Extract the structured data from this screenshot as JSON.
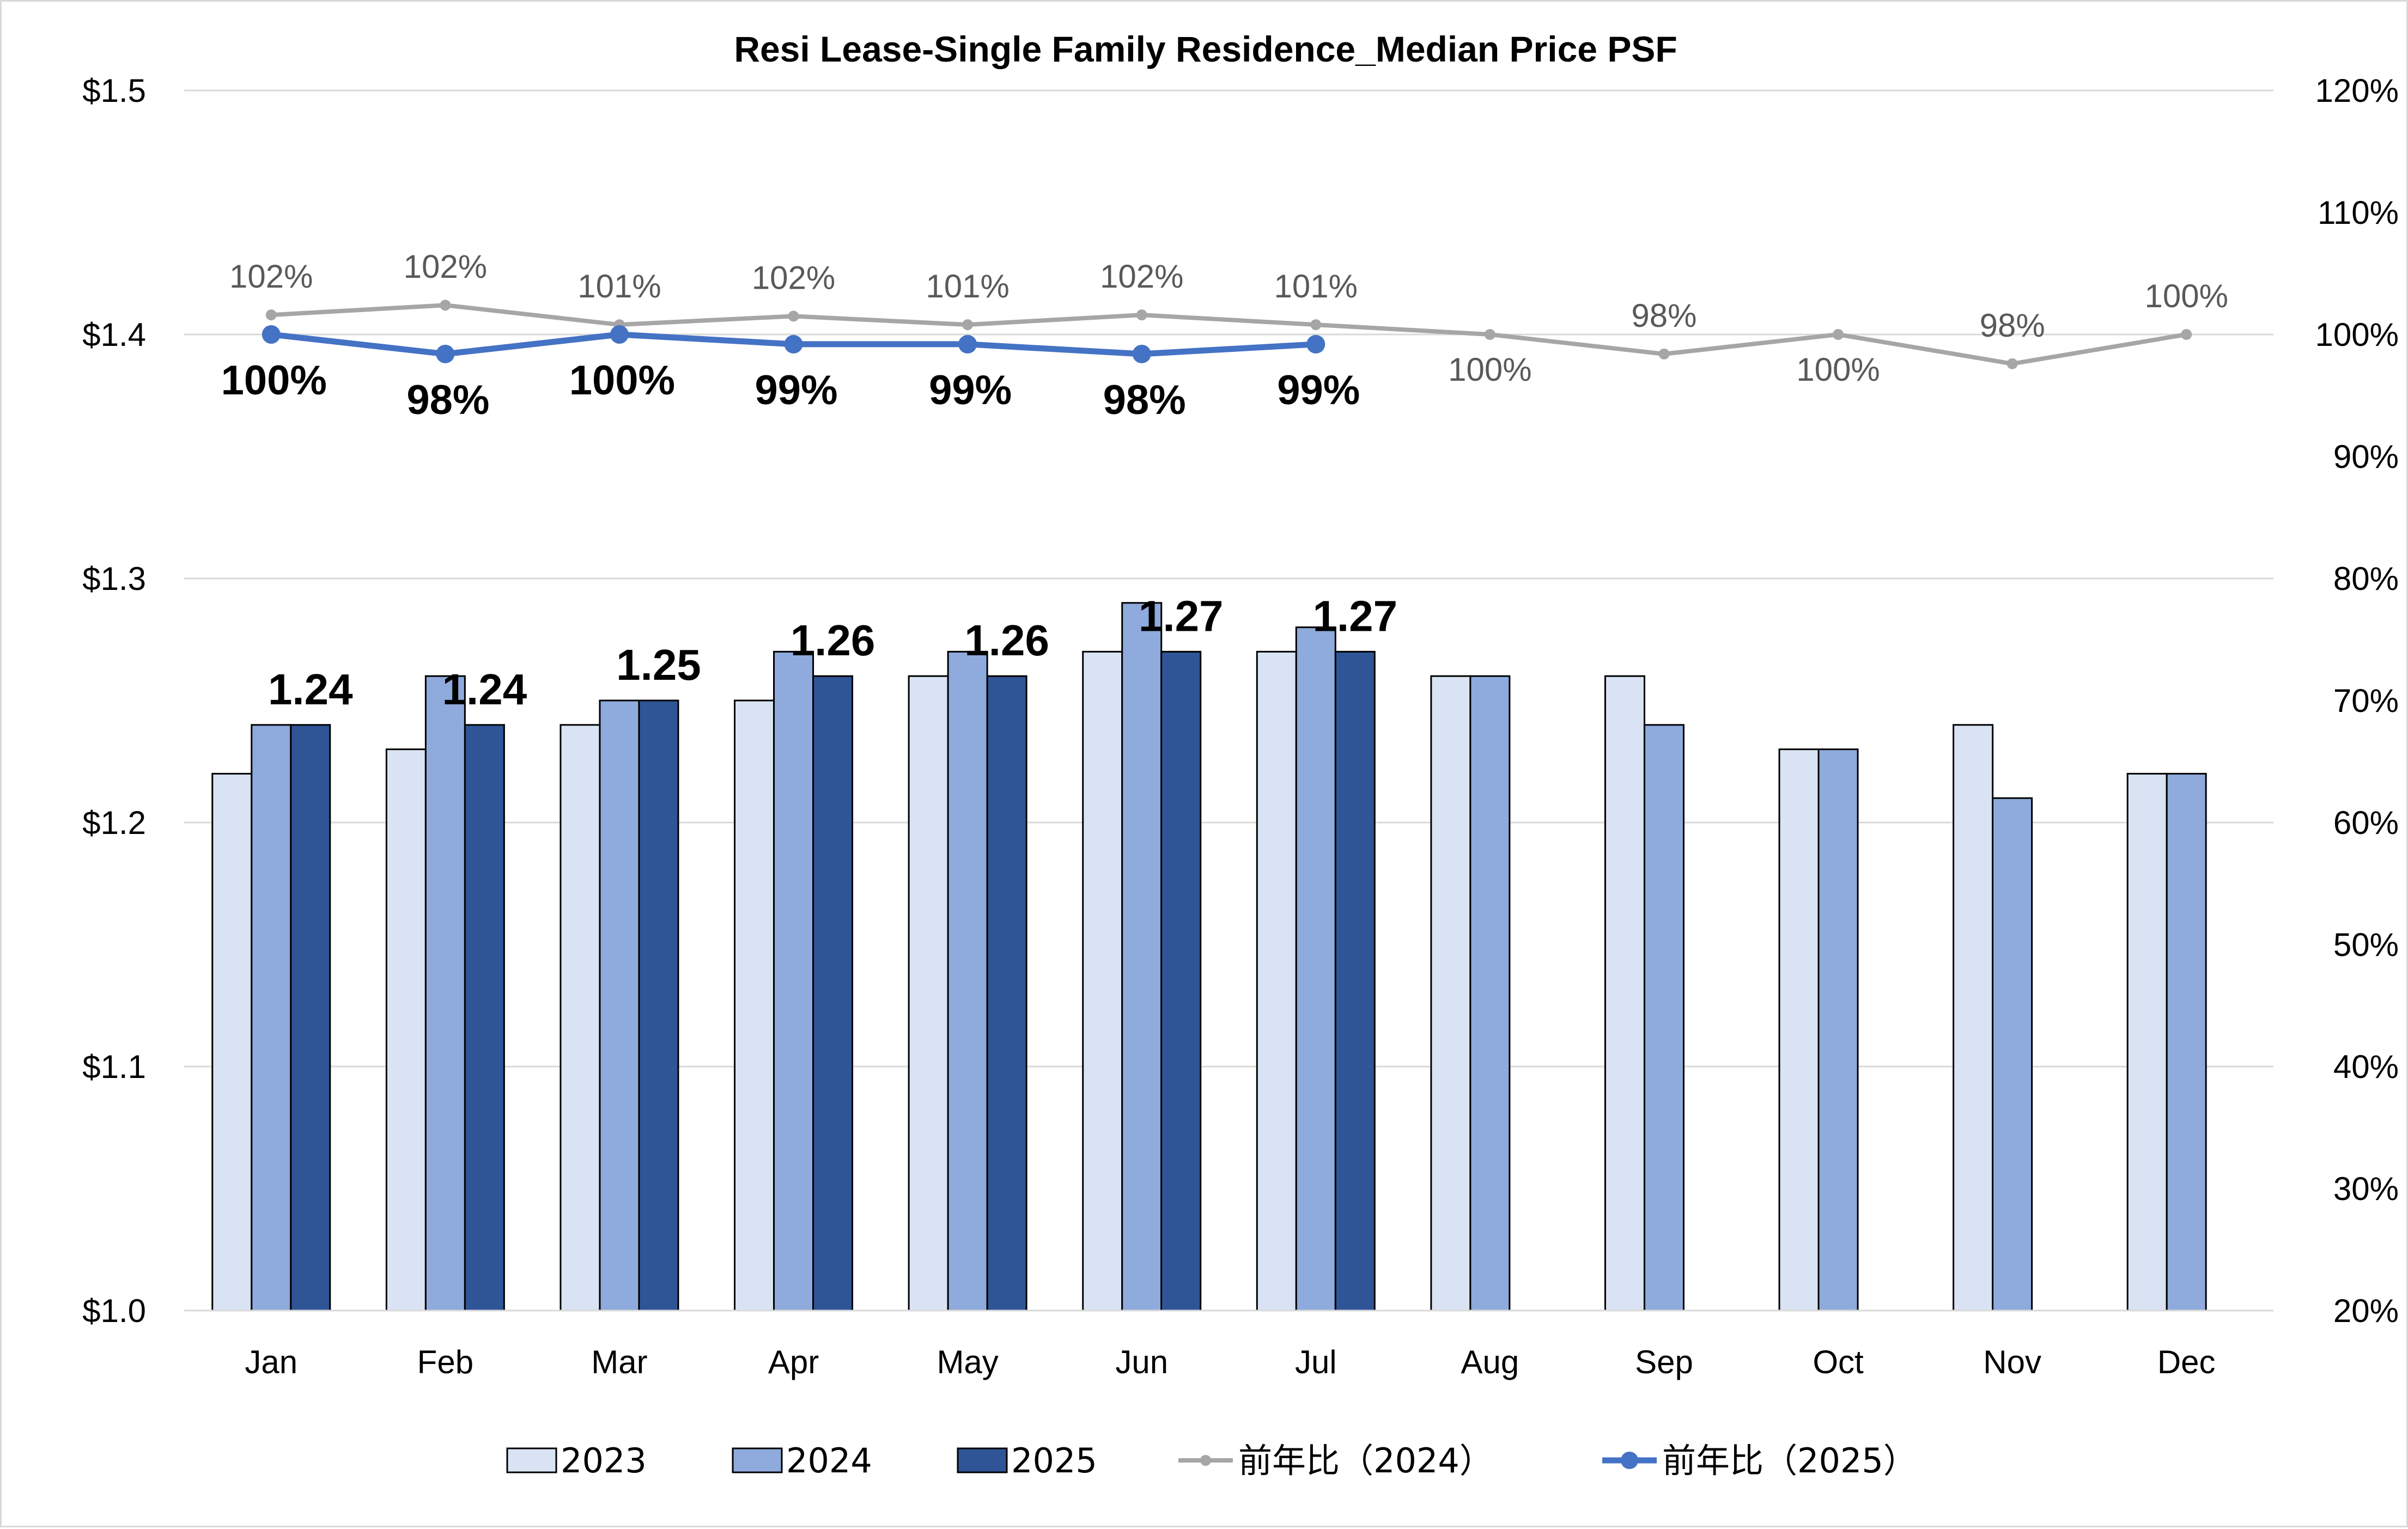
{
  "chart_data": {
    "type": "bar",
    "title": "Resi Lease-Single Family Residence_Median Price PSF",
    "categories": [
      "Jan",
      "Feb",
      "Mar",
      "Apr",
      "May",
      "Jun",
      "Jul",
      "Aug",
      "Sep",
      "Oct",
      "Nov",
      "Dec"
    ],
    "y_left": {
      "ylim": [
        1.0,
        1.5
      ],
      "ticks": [
        1.0,
        1.1,
        1.2,
        1.3,
        1.4,
        1.5
      ],
      "tick_labels": [
        "$1.0",
        "$1.1",
        "$1.2",
        "$1.3",
        "$1.4",
        "$1.5"
      ]
    },
    "y_right": {
      "ylim": [
        20,
        120
      ],
      "ticks": [
        20,
        30,
        40,
        50,
        60,
        70,
        80,
        90,
        100,
        110,
        120
      ],
      "tick_labels": [
        "20%",
        "30%",
        "40%",
        "50%",
        "60%",
        "70%",
        "80%",
        "90%",
        "100%",
        "110%",
        "120%"
      ]
    },
    "grid": "horizontal",
    "legend_position": "bottom",
    "series": [
      {
        "name": "2023",
        "type": "bar",
        "axis": "left",
        "color": "#dae3f3",
        "values": [
          1.22,
          1.23,
          1.24,
          1.25,
          1.26,
          1.27,
          1.27,
          1.26,
          1.26,
          1.23,
          1.24,
          1.22
        ]
      },
      {
        "name": "2024",
        "type": "bar",
        "axis": "left",
        "color": "#8faadc",
        "values": [
          1.24,
          1.26,
          1.25,
          1.27,
          1.27,
          1.29,
          1.28,
          1.26,
          1.24,
          1.23,
          1.21,
          1.22
        ]
      },
      {
        "name": "2025",
        "type": "bar",
        "axis": "left",
        "color": "#2f5597",
        "values": [
          1.24,
          1.24,
          1.25,
          1.26,
          1.26,
          1.27,
          1.27,
          null,
          null,
          null,
          null,
          null
        ],
        "data_labels": [
          "1.24",
          "1.24",
          "1.25",
          "1.26",
          "1.26",
          "1.27",
          "1.27"
        ]
      },
      {
        "name": "前年比（2024）",
        "type": "line",
        "axis": "right",
        "color": "#a6a6a6",
        "values": [
          101.6,
          102.4,
          100.8,
          101.5,
          100.8,
          101.6,
          100.8,
          100.0,
          98.4,
          100.0,
          97.6,
          100.0
        ],
        "data_labels": [
          "102%",
          "102%",
          "101%",
          "102%",
          "101%",
          "102%",
          "101%",
          "100%",
          "98%",
          "100%",
          "98%",
          "100%"
        ]
      },
      {
        "name": "前年比（2025）",
        "type": "line",
        "axis": "right",
        "color": "#4472c4",
        "values": [
          100.0,
          98.4,
          100.0,
          99.2,
          99.2,
          98.4,
          99.2,
          null,
          null,
          null,
          null,
          null
        ],
        "data_labels": [
          "100%",
          "98%",
          "100%",
          "99%",
          "99%",
          "98%",
          "99%"
        ]
      }
    ]
  }
}
